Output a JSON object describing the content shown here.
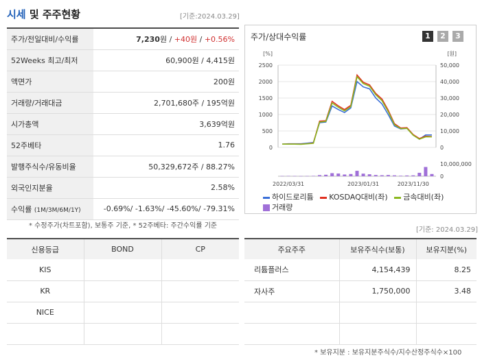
{
  "left_section": {
    "title_accent": "시세",
    "title_rest": " 및 주주현황",
    "base_date": "[기준:2024.03.29]",
    "rows": [
      {
        "label": "주가/전일대비/수익률"
      },
      {
        "label": "52Weeks 최고/최저",
        "value": "60,900원 / 4,415원"
      },
      {
        "label": "액면가",
        "value": "200원"
      },
      {
        "label": "거래량/거래대금",
        "value": "2,701,680주 / 195억원"
      },
      {
        "label": "시가총액",
        "value": "3,639억원"
      },
      {
        "label": "52주베타",
        "value": "1.76"
      },
      {
        "label": "발행주식수/유동비율",
        "value": "50,329,672주 / 88.27%"
      },
      {
        "label": "외국인지분율",
        "value": "2.58%"
      },
      {
        "label": "수익률",
        "sub": "(1M/3M/6M/1Y)"
      }
    ],
    "price": {
      "current": "7,230",
      "unit": "원",
      "sep": " / ",
      "change": "+40원",
      "rate": "+0.56%"
    },
    "returns": "-0.69%/ -1.63%/ -45.60%/ -79.31%",
    "note": "* 수정주가(차트포함), 보통주 기준, * 52주베타: 주간수익률 기준"
  },
  "chart_panel": {
    "title": "주가/상대수익률",
    "pages": [
      "1",
      "2",
      "3"
    ],
    "left_unit": "[%]",
    "right_unit": "[원]",
    "legend": [
      {
        "name": "하이드로리튬",
        "color": "#3a6fd8",
        "type": "line"
      },
      {
        "name": "KOSDAQ대비(좌)",
        "color": "#e03020",
        "type": "line"
      },
      {
        "name": "금속대비(좌)",
        "color": "#8bb820",
        "type": "line"
      },
      {
        "name": "거래량",
        "color": "#a070d8",
        "type": "box"
      }
    ]
  },
  "chart_data": {
    "type": "line",
    "x_ticks": [
      "2022/03/31",
      "2023/01/31",
      "2023/11/30"
    ],
    "left_axis": {
      "ticks": [
        "2500",
        "2000",
        "1500",
        "1000",
        "500",
        "0"
      ],
      "range": [
        0,
        2500
      ]
    },
    "right_axis": {
      "ticks": [
        "50,000",
        "40,000",
        "30,000",
        "20,000",
        "10,000",
        "0"
      ],
      "range": [
        0,
        50000
      ]
    },
    "volume_axis": {
      "ticks": [
        "10,000,000",
        "0"
      ],
      "range": [
        0,
        10000000
      ]
    },
    "series": [
      {
        "name": "하이드로리튬",
        "color": "#3a6fd8",
        "values": [
          100,
          110,
          110,
          110,
          130,
          150,
          750,
          770,
          1260,
          1150,
          1060,
          1200,
          2000,
          1840,
          1780,
          1500,
          1320,
          1000,
          650,
          560,
          580,
          380,
          250,
          380,
          380
        ]
      },
      {
        "name": "KOSDAQ대비(좌)",
        "color": "#e03020",
        "values": [
          100,
          105,
          105,
          100,
          115,
          135,
          800,
          810,
          1400,
          1260,
          1150,
          1280,
          2200,
          1980,
          1900,
          1640,
          1470,
          1130,
          720,
          590,
          600,
          390,
          270,
          340,
          330
        ]
      },
      {
        "name": "금속대비(좌)",
        "color": "#8bb820",
        "values": [
          100,
          100,
          100,
          95,
          110,
          125,
          770,
          790,
          1350,
          1220,
          1110,
          1240,
          2150,
          1940,
          1860,
          1600,
          1420,
          1090,
          690,
          570,
          580,
          370,
          250,
          320,
          320
        ]
      }
    ],
    "volume": [
      200000,
      250000,
      200000,
      150000,
      200000,
      300000,
      900000,
      1200000,
      2500000,
      2200000,
      1400000,
      1800000,
      4400000,
      2100000,
      1600000,
      1000000,
      800000,
      1000000,
      700000,
      400000,
      600000,
      700000,
      2800000,
      7500000,
      1800000
    ]
  },
  "credit_table": {
    "headers": [
      "신용등급",
      "BOND",
      "CP"
    ],
    "rows": [
      [
        "KIS",
        "",
        ""
      ],
      [
        "KR",
        "",
        ""
      ],
      [
        "NICE",
        "",
        ""
      ],
      [
        "",
        "",
        ""
      ]
    ]
  },
  "holder_table": {
    "base_date": "[기준: 2024.03.29]",
    "headers": [
      "주요주주",
      "보유주식수(보통)",
      "보유지분(%)"
    ],
    "rows": [
      [
        "리튬플러스",
        "4,154,439",
        "8.25"
      ],
      [
        "자사주",
        "1,750,000",
        "3.48"
      ],
      [
        "",
        "",
        ""
      ],
      [
        "",
        "",
        ""
      ]
    ],
    "note": "* 보유지분 : 보유지분주식수/지수산정주식수×100"
  }
}
